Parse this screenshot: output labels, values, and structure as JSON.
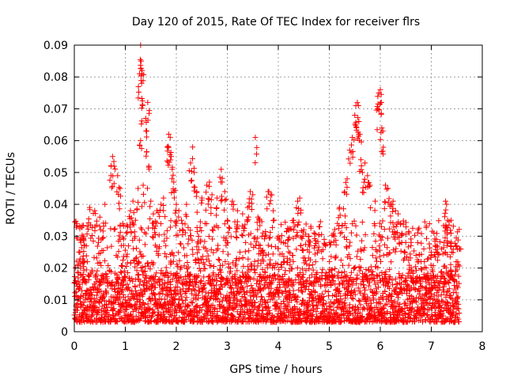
{
  "chart_data": {
    "type": "scatter",
    "title": "Day 120 of 2015, Rate Of TEC Index for receiver flrs",
    "xlabel": "GPS time / hours",
    "ylabel": "ROTI / TECUs",
    "xlim": [
      0,
      8
    ],
    "ylim": [
      0,
      0.09
    ],
    "x_ticks": [
      "0",
      "1",
      "2",
      "3",
      "4",
      "5",
      "6",
      "7",
      "8"
    ],
    "y_ticks": [
      "0",
      "0.01",
      "0.02",
      "0.03",
      "0.04",
      "0.05",
      "0.06",
      "0.07",
      "0.08",
      "0.09"
    ],
    "grid": true,
    "marker": "+",
    "color": "#ff0000",
    "series": [
      {
        "name": "ROTI",
        "points": [
          [
            0.05,
            0.034
          ],
          [
            0.12,
            0.029
          ],
          [
            0.2,
            0.027
          ],
          [
            0.3,
            0.039
          ],
          [
            0.4,
            0.038
          ],
          [
            0.5,
            0.036
          ],
          [
            0.6,
            0.04
          ],
          [
            0.75,
            0.055
          ],
          [
            0.78,
            0.052
          ],
          [
            0.72,
            0.049
          ],
          [
            0.85,
            0.049
          ],
          [
            0.9,
            0.045
          ],
          [
            0.95,
            0.034
          ],
          [
            1.02,
            0.031
          ],
          [
            1.1,
            0.038
          ],
          [
            1.15,
            0.041
          ],
          [
            1.2,
            0.035
          ],
          [
            1.25,
            0.045
          ],
          [
            1.28,
            0.081
          ],
          [
            1.3,
            0.09
          ],
          [
            1.31,
            0.085
          ],
          [
            1.32,
            0.078
          ],
          [
            1.33,
            0.082
          ],
          [
            1.34,
            0.071
          ],
          [
            1.3,
            0.06
          ],
          [
            1.35,
            0.046
          ],
          [
            1.4,
            0.067
          ],
          [
            1.42,
            0.063
          ],
          [
            1.44,
            0.072
          ],
          [
            1.46,
            0.052
          ],
          [
            1.5,
            0.041
          ],
          [
            1.55,
            0.037
          ],
          [
            1.62,
            0.038
          ],
          [
            1.7,
            0.04
          ],
          [
            1.75,
            0.042
          ],
          [
            1.82,
            0.058
          ],
          [
            1.85,
            0.062
          ],
          [
            1.88,
            0.061
          ],
          [
            1.9,
            0.055
          ],
          [
            1.92,
            0.051
          ],
          [
            1.95,
            0.047
          ],
          [
            2.0,
            0.04
          ],
          [
            2.05,
            0.038
          ],
          [
            2.1,
            0.035
          ],
          [
            2.2,
            0.04
          ],
          [
            2.28,
            0.053
          ],
          [
            2.32,
            0.058
          ],
          [
            2.35,
            0.05
          ],
          [
            2.4,
            0.044
          ],
          [
            2.5,
            0.042
          ],
          [
            2.6,
            0.046
          ],
          [
            2.65,
            0.047
          ],
          [
            2.7,
            0.043
          ],
          [
            2.8,
            0.042
          ],
          [
            2.88,
            0.051
          ],
          [
            2.9,
            0.047
          ],
          [
            2.95,
            0.044
          ],
          [
            3.0,
            0.035
          ],
          [
            3.1,
            0.041
          ],
          [
            3.2,
            0.038
          ],
          [
            3.3,
            0.037
          ],
          [
            3.4,
            0.039
          ],
          [
            3.45,
            0.044
          ],
          [
            3.5,
            0.043
          ],
          [
            3.55,
            0.061
          ],
          [
            3.6,
            0.036
          ],
          [
            3.7,
            0.031
          ],
          [
            3.8,
            0.044
          ],
          [
            3.85,
            0.043
          ],
          [
            3.9,
            0.038
          ],
          [
            4.0,
            0.03
          ],
          [
            4.1,
            0.028
          ],
          [
            4.2,
            0.029
          ],
          [
            4.3,
            0.035
          ],
          [
            4.38,
            0.041
          ],
          [
            4.42,
            0.042
          ],
          [
            4.5,
            0.032
          ],
          [
            4.6,
            0.03
          ],
          [
            4.7,
            0.031
          ],
          [
            4.8,
            0.033
          ],
          [
            4.9,
            0.029
          ],
          [
            5.0,
            0.028
          ],
          [
            5.1,
            0.03
          ],
          [
            5.2,
            0.039
          ],
          [
            5.3,
            0.044
          ],
          [
            5.35,
            0.048
          ],
          [
            5.4,
            0.057
          ],
          [
            5.45,
            0.061
          ],
          [
            5.5,
            0.068
          ],
          [
            5.52,
            0.071
          ],
          [
            5.55,
            0.072
          ],
          [
            5.58,
            0.066
          ],
          [
            5.6,
            0.062
          ],
          [
            5.62,
            0.054
          ],
          [
            5.65,
            0.05
          ],
          [
            5.7,
            0.053
          ],
          [
            5.75,
            0.049
          ],
          [
            5.8,
            0.046
          ],
          [
            5.9,
            0.041
          ],
          [
            5.95,
            0.07
          ],
          [
            5.97,
            0.075
          ],
          [
            6.0,
            0.076
          ],
          [
            6.02,
            0.072
          ],
          [
            6.03,
            0.064
          ],
          [
            6.05,
            0.063
          ],
          [
            6.1,
            0.046
          ],
          [
            6.15,
            0.045
          ],
          [
            6.2,
            0.04
          ],
          [
            6.25,
            0.041
          ],
          [
            6.3,
            0.038
          ],
          [
            6.35,
            0.037
          ],
          [
            6.4,
            0.034
          ],
          [
            6.5,
            0.028
          ],
          [
            6.6,
            0.027
          ],
          [
            6.7,
            0.024
          ],
          [
            6.8,
            0.022
          ],
          [
            6.9,
            0.02
          ],
          [
            7.0,
            0.025
          ],
          [
            7.05,
            0.031
          ],
          [
            7.1,
            0.029
          ],
          [
            7.2,
            0.026
          ],
          [
            7.25,
            0.028
          ],
          [
            7.28,
            0.041
          ],
          [
            7.3,
            0.04
          ],
          [
            7.32,
            0.035
          ],
          [
            7.4,
            0.025
          ],
          [
            7.5,
            0.027
          ],
          [
            7.55,
            0.026
          ]
        ],
        "baseline_band": {
          "x_range": [
            0,
            7.55
          ],
          "dense_range": [
            0.003,
            0.018
          ],
          "note": "dense continuous cloud of points across all hours"
        }
      }
    ]
  }
}
